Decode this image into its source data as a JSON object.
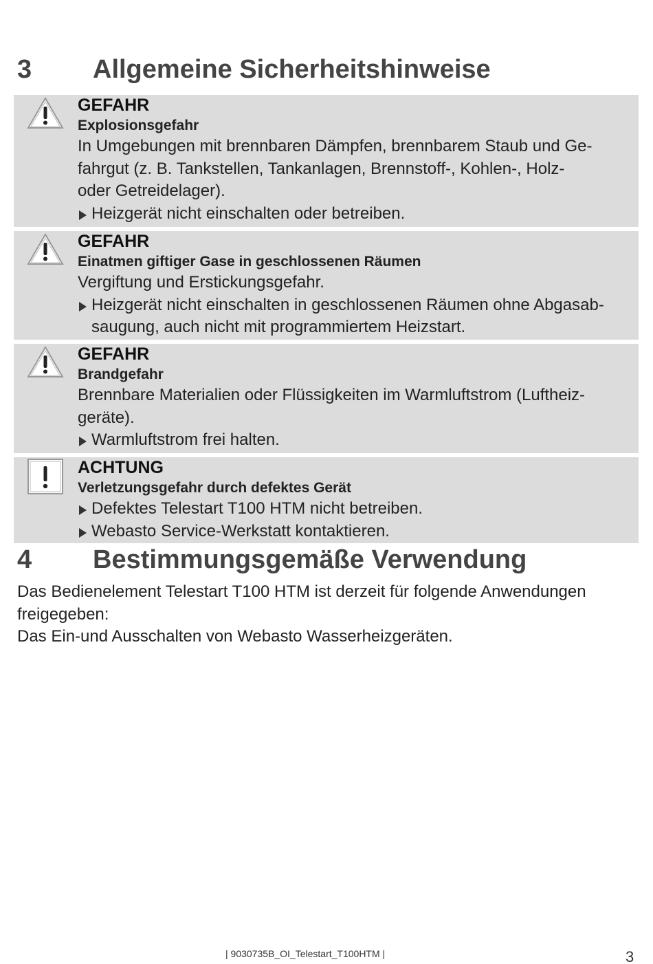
{
  "section3": {
    "number": "3",
    "title": "Allgemeine Sicherheitshinweise"
  },
  "warnings": [
    {
      "signal": "GEFAHR",
      "icon": "warning-triangle-icon",
      "subtitle": "Explosionsgefahr",
      "text": [
        "In Umgebungen mit brennbaren Dämpfen, brennbarem Staub und Ge-",
        "fahrgut (z. B. Tankstellen, Tankanlagen, Brennstoff-, Kohlen-, Holz-",
        "oder Getreidelager)."
      ],
      "actions": [
        [
          "Heizgerät nicht einschalten oder betreiben."
        ]
      ]
    },
    {
      "signal": "GEFAHR",
      "icon": "warning-triangle-icon",
      "subtitle": "Einatmen giftiger Gase in geschlossenen Räumen",
      "text": [
        "Vergiftung und Erstickungsgefahr."
      ],
      "actions": [
        [
          "Heizgerät nicht einschalten in geschlossenen Räumen ohne Abgasab-",
          "saugung, auch nicht mit programmiertem Heizstart."
        ]
      ]
    },
    {
      "signal": "GEFAHR",
      "icon": "warning-triangle-icon",
      "subtitle": "Brandgefahr",
      "text": [
        "Brennbare Materialien oder Flüssigkeiten im Warmluftstrom (Luftheiz-",
        "geräte)."
      ],
      "actions": [
        [
          "Warmluftstrom frei halten."
        ]
      ]
    },
    {
      "signal": "ACHTUNG",
      "icon": "exclamation-square-icon",
      "subtitle": "Verletzungsgefahr durch defektes Gerät",
      "text": [],
      "actions": [
        [
          "Defektes Telestart T100 HTM nicht betreiben."
        ],
        [
          "Webasto Service-Werkstatt kontaktieren."
        ]
      ]
    }
  ],
  "section4": {
    "number": "4",
    "title": "Bestimmungsgemäße Verwendung",
    "paragraph": [
      "Das Bedienelement Telestart T100 HTM ist derzeit für folgende Anwendungen",
      "freigegeben:",
      "Das Ein-und Ausschalten von Webasto Wasserheizgeräten."
    ]
  },
  "footer": {
    "doc_id": "| 9030735B_OI_Telestart_T100HTM |",
    "page_number": "3"
  }
}
